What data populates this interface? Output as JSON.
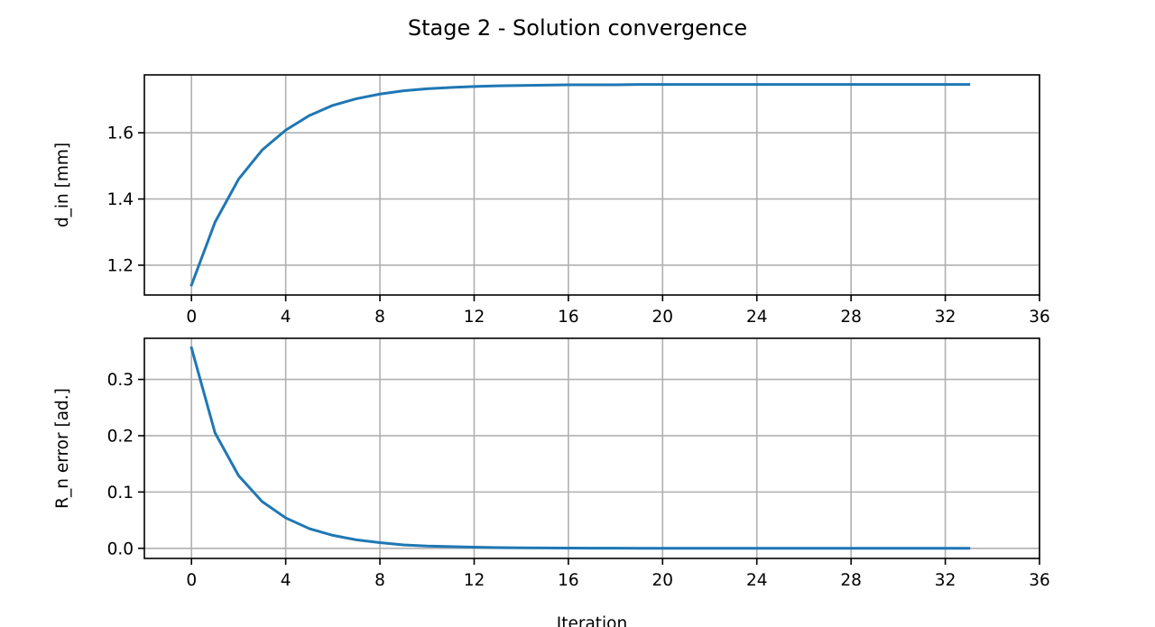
{
  "figure": {
    "title": "Stage 2 - Solution convergence"
  },
  "colors": {
    "line": "#1f77b4",
    "grid": "#b0b0b0",
    "axes": "#000000"
  },
  "chart_data": [
    {
      "type": "line",
      "title": "",
      "xlabel": "",
      "ylabel": "d_in [mm]",
      "xlim": [
        -2,
        36
      ],
      "ylim": [
        1.11,
        1.775
      ],
      "xticks": [
        0,
        4,
        8,
        12,
        16,
        20,
        24,
        28,
        32,
        36
      ],
      "yticks": [
        1.2,
        1.4,
        1.6
      ],
      "ytick_labels": [
        "1.2",
        "1.4",
        "1.6"
      ],
      "grid": true,
      "series": [
        {
          "x": [
            0,
            1,
            2,
            3,
            4,
            5,
            6,
            7,
            8,
            9,
            10,
            11,
            12,
            13,
            14,
            15,
            16,
            17,
            18,
            19,
            20,
            21,
            22,
            23,
            24,
            25,
            26,
            27,
            28,
            29,
            30,
            31,
            32,
            33
          ],
          "values": [
            1.14,
            1.33,
            1.46,
            1.548,
            1.608,
            1.652,
            1.683,
            1.703,
            1.717,
            1.727,
            1.733,
            1.737,
            1.74,
            1.742,
            1.743,
            1.744,
            1.745,
            1.745,
            1.745,
            1.746,
            1.746,
            1.746,
            1.746,
            1.746,
            1.746,
            1.746,
            1.746,
            1.746,
            1.746,
            1.746,
            1.746,
            1.746,
            1.746,
            1.746
          ]
        }
      ]
    },
    {
      "type": "line",
      "title": "",
      "xlabel": "Iteration",
      "ylabel": "R_n error [ad.]",
      "xlim": [
        -2,
        36
      ],
      "ylim": [
        -0.018,
        0.373
      ],
      "xticks": [
        0,
        4,
        8,
        12,
        16,
        20,
        24,
        28,
        32,
        36
      ],
      "yticks": [
        0.0,
        0.1,
        0.2,
        0.3
      ],
      "ytick_labels": [
        "0.0",
        "0.1",
        "0.2",
        "0.3"
      ],
      "grid": true,
      "series": [
        {
          "x": [
            0,
            1,
            2,
            3,
            4,
            5,
            6,
            7,
            8,
            9,
            10,
            11,
            12,
            13,
            14,
            15,
            16,
            17,
            18,
            19,
            20,
            21,
            22,
            23,
            24,
            25,
            26,
            27,
            28,
            29,
            30,
            31,
            32,
            33
          ],
          "values": [
            0.356,
            0.205,
            0.129,
            0.083,
            0.054,
            0.035,
            0.023,
            0.015,
            0.01,
            0.006,
            0.004,
            0.003,
            0.002,
            0.0013,
            0.0009,
            0.0006,
            0.0004,
            0.0003,
            0.0002,
            0.0001,
            0.0001,
            0,
            0,
            0,
            0,
            0,
            0,
            0,
            0,
            0,
            0,
            0,
            0,
            0
          ]
        }
      ]
    }
  ]
}
